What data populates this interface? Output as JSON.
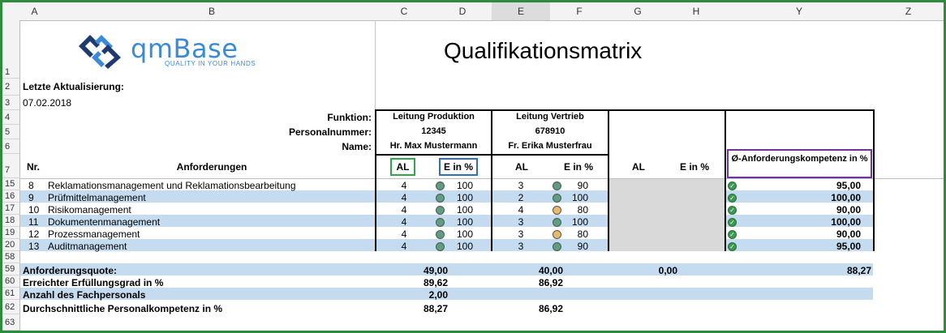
{
  "columns": [
    "A",
    "B",
    "C",
    "D",
    "E",
    "F",
    "G",
    "H",
    "Y",
    "Z"
  ],
  "rows": [
    "1",
    "2",
    "3",
    "4",
    "5",
    "6",
    "7",
    "15",
    "16",
    "17",
    "18",
    "19",
    "20",
    "58",
    "59",
    "60",
    "61",
    "62",
    "63"
  ],
  "logo": {
    "name": "qmBase",
    "tagline": "QUALITY IN YOUR HANDS"
  },
  "title": "Qualifikationsmatrix",
  "updated_label": "Letzte Aktualisierung:",
  "updated_date": "07.02.2018",
  "header_labels": {
    "function": "Funktion:",
    "personnel_no": "Personalnummer:",
    "name": "Name:"
  },
  "persons": [
    {
      "function": "Leitung Produktion",
      "number": "12345",
      "name": "Hr. Max Mustermann"
    },
    {
      "function": "Leitung Vertrieb",
      "number": "678910",
      "name": "Fr. Erika Musterfrau"
    }
  ],
  "table_headers": {
    "nr": "Nr.",
    "requirements": "Anforderungen",
    "al": "AL",
    "e_pct": "E in %",
    "avg": "Ø-Anforderungskompetenz in %"
  },
  "status_colors": {
    "green": "#5e9e80",
    "orange": "#e8b870"
  },
  "requirements": [
    {
      "nr": "8",
      "name": "Reklamationsmanagement und Reklamationsbearbeitung",
      "al1": "4",
      "s1": "green",
      "e1": "100",
      "al2": "3",
      "s2": "green",
      "e2": "90",
      "avg": "95,00"
    },
    {
      "nr": "9",
      "name": "Prüfmittelmanagement",
      "al1": "4",
      "s1": "green",
      "e1": "100",
      "al2": "2",
      "s2": "green",
      "e2": "100",
      "avg": "100,00"
    },
    {
      "nr": "10",
      "name": "Risikomanagement",
      "al1": "4",
      "s1": "green",
      "e1": "100",
      "al2": "4",
      "s2": "orange",
      "e2": "80",
      "avg": "90,00"
    },
    {
      "nr": "11",
      "name": "Dokumentenmanagement",
      "al1": "4",
      "s1": "green",
      "e1": "100",
      "al2": "3",
      "s2": "green",
      "e2": "100",
      "avg": "100,00"
    },
    {
      "nr": "12",
      "name": "Prozessmanagement",
      "al1": "4",
      "s1": "green",
      "e1": "100",
      "al2": "3",
      "s2": "orange",
      "e2": "80",
      "avg": "90,00"
    },
    {
      "nr": "13",
      "name": "Auditmanagement",
      "al1": "4",
      "s1": "green",
      "e1": "100",
      "al2": "3",
      "s2": "green",
      "e2": "90",
      "avg": "95,00"
    }
  ],
  "summary": {
    "quota_label": "Anforderungsquote:",
    "quota_p1": "49,00",
    "quota_p2": "40,00",
    "quota_p3": "0,00",
    "quota_avg": "88,27",
    "fulfil_label": "Erreichter Erfüllungsgrad in %",
    "fulfil_p1": "89,62",
    "fulfil_p2": "86,92",
    "staff_label": "Anzahl des Fachpersonals",
    "staff_value": "2,00",
    "avgcomp_label": "Durchschnittliche Personalkompetenz in %",
    "avgcomp_p1": "88,27",
    "avgcomp_p2": "86,92"
  }
}
